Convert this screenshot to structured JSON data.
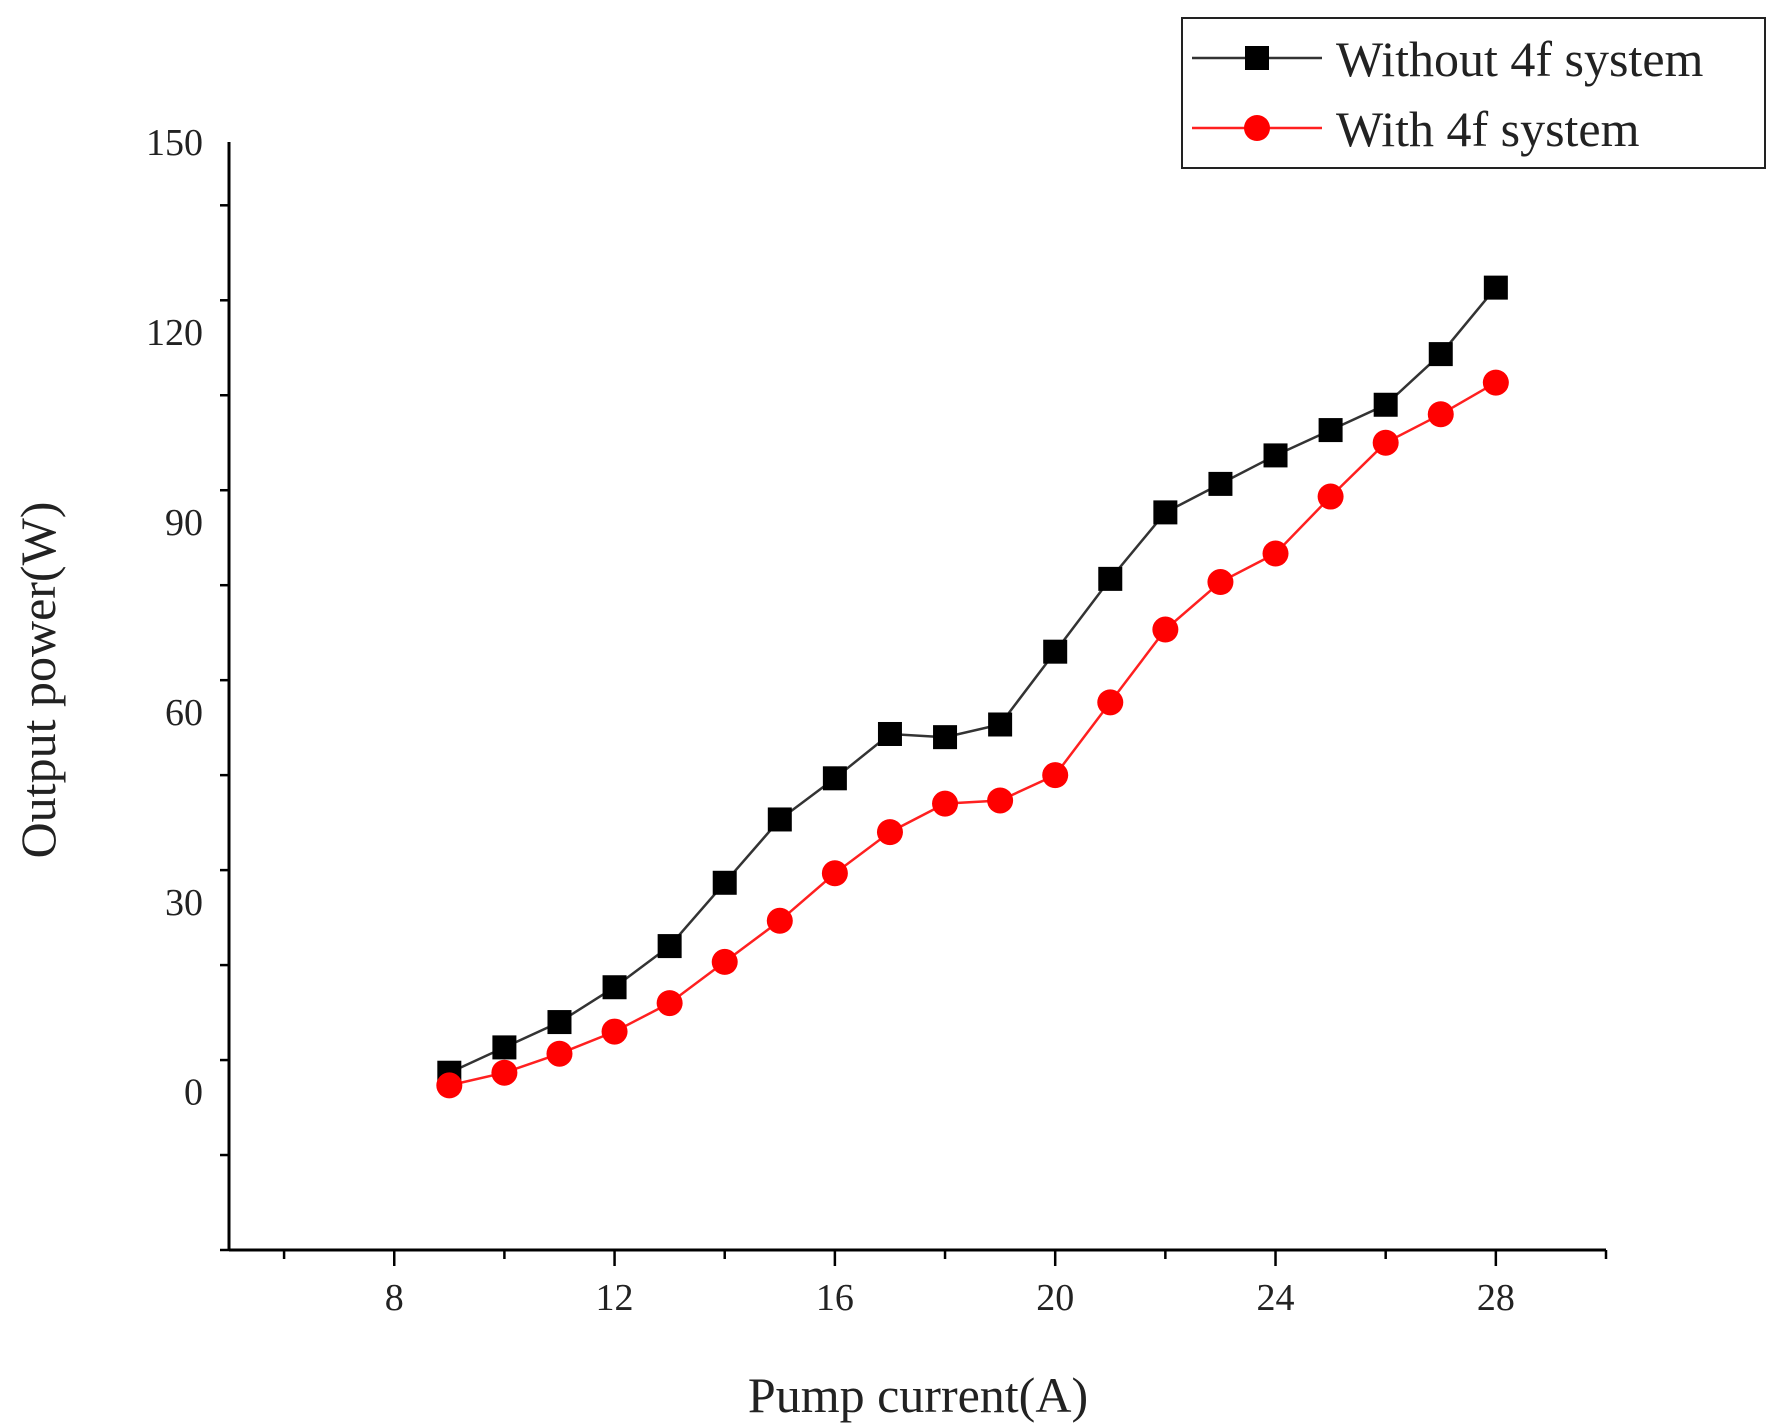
{
  "chart_data": {
    "type": "line",
    "title": "",
    "xlabel": "Pump current(A)",
    "ylabel": "Output power(W)",
    "xlim": [
      5,
      30
    ],
    "ylim": [
      -25,
      150
    ],
    "xticks": [
      8,
      12,
      16,
      20,
      24,
      28
    ],
    "yticks": [
      0,
      30,
      60,
      90,
      120,
      150
    ],
    "grid": false,
    "legend_position": "top-right",
    "x": [
      9,
      10,
      11,
      12,
      13,
      14,
      15,
      16,
      17,
      18,
      19,
      20,
      21,
      22,
      23,
      24,
      25,
      26,
      27,
      28
    ],
    "series": [
      {
        "name": "Without 4f system",
        "color": "#000000",
        "line_color": "#333333",
        "marker": "square",
        "values": [
          3,
          7,
          11,
          16.5,
          23,
          33,
          43,
          49.5,
          56.5,
          56,
          58,
          69.5,
          81,
          91.5,
          96,
          100.5,
          104.5,
          108.5,
          116.5,
          127
        ]
      },
      {
        "name": "With 4f system",
        "color": "#ff0000",
        "line_color": "#ff2020",
        "marker": "circle",
        "values": [
          1,
          3,
          6,
          9.5,
          14,
          20.5,
          27,
          34.5,
          41,
          45.5,
          46,
          50,
          61.5,
          73,
          80.5,
          85,
          94,
          102.5,
          107,
          112
        ]
      }
    ]
  }
}
